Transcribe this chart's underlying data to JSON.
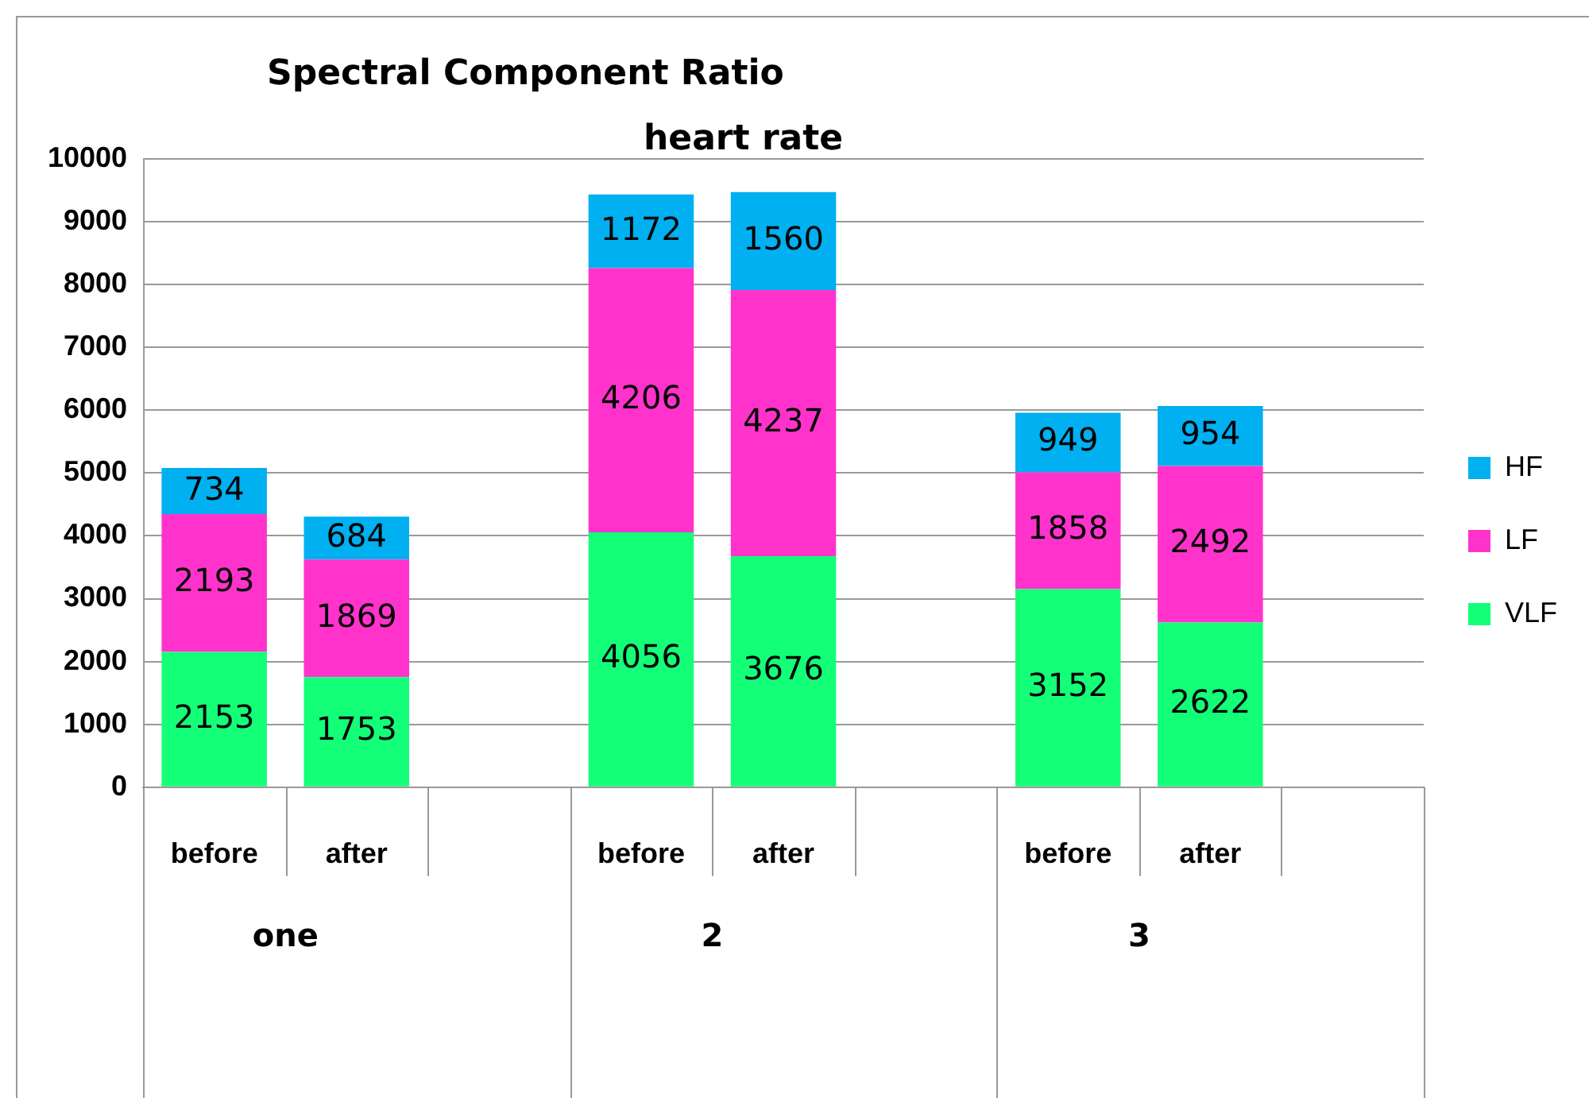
{
  "chart_data": {
    "type": "bar",
    "title": "Spectral Component Ratio",
    "subtitle": "heart rate",
    "categories": [
      "before",
      "after",
      null,
      "before",
      "after",
      null,
      "before",
      "after",
      null
    ],
    "annotations": [
      "one",
      "2",
      "3"
    ],
    "series": [
      {
        "name": "VLF",
        "color": "#14ff78",
        "values": [
          2153,
          1753,
          null,
          4056,
          3676,
          null,
          3152,
          2622,
          null
        ]
      },
      {
        "name": "LF",
        "color": "#ff33cc",
        "values": [
          2193,
          1869,
          null,
          4206,
          4237,
          null,
          1858,
          2492,
          null
        ]
      },
      {
        "name": "HF",
        "color": "#00b0f0",
        "values": [
          734,
          684,
          null,
          1172,
          1560,
          null,
          949,
          954,
          null
        ]
      }
    ],
    "stacked": true,
    "data_labels": true,
    "legend": "right",
    "grid": "y",
    "ylim": [
      0,
      10000
    ],
    "yticks": [
      0,
      1000,
      2000,
      3000,
      4000,
      5000,
      6000,
      7000,
      8000,
      9000,
      10000
    ]
  }
}
